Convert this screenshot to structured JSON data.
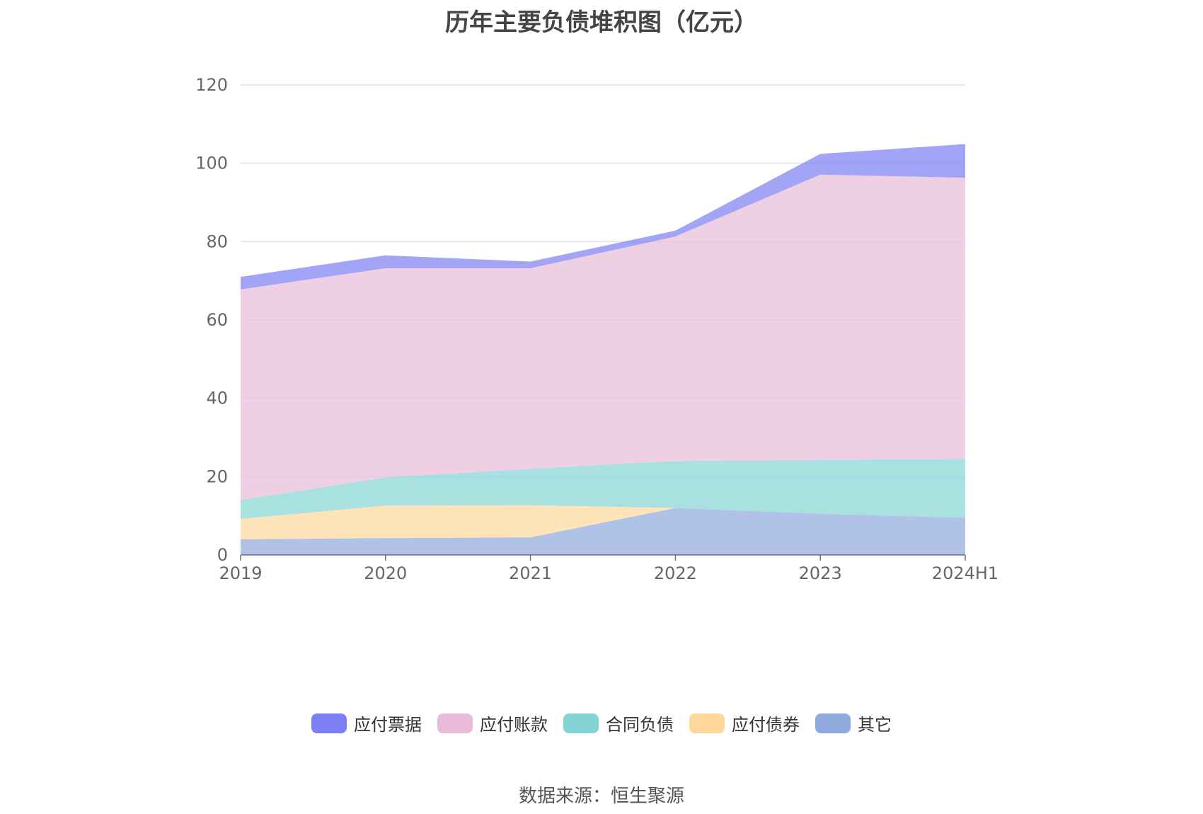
{
  "chart_data": {
    "type": "area",
    "stacked": true,
    "title": "历年主要负债堆积图（亿元）",
    "categories": [
      "2019",
      "2020",
      "2021",
      "2022",
      "2023",
      "2024H1"
    ],
    "ylim": [
      0,
      120
    ],
    "yticks": [
      0,
      20,
      40,
      60,
      80,
      100,
      120
    ],
    "grid": true,
    "legend_position": "bottom",
    "series": [
      {
        "name": "其它",
        "color": "#8faadc",
        "values": [
          4.0,
          4.3,
          4.5,
          12.0,
          10.5,
          9.5
        ]
      },
      {
        "name": "应付债券",
        "color": "#ffd79b",
        "values": [
          5.2,
          8.3,
          8.2,
          0.0,
          0.0,
          0.0
        ]
      },
      {
        "name": "合同负债",
        "color": "#85d4d4",
        "values": [
          4.8,
          7.2,
          9.3,
          12.0,
          13.8,
          15.0
        ]
      },
      {
        "name": "应付账款",
        "color": "#e8bbd9",
        "values": [
          53.8,
          53.4,
          51.2,
          57.3,
          72.8,
          71.8
        ]
      },
      {
        "name": "应付票据",
        "color": "#7b7ff2",
        "values": [
          3.2,
          3.3,
          1.7,
          1.5,
          5.3,
          8.6
        ]
      }
    ],
    "legend_order": [
      "应付票据",
      "应付账款",
      "合同负债",
      "应付债券",
      "其它"
    ]
  },
  "source": "数据来源：恒生聚源"
}
